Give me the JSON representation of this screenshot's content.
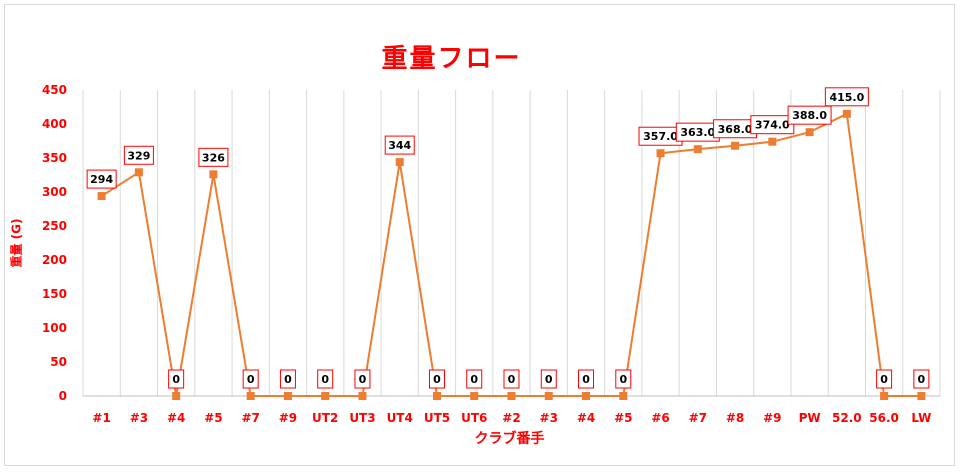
{
  "chart_data": {
    "type": "line",
    "title": "重量フロー",
    "xlabel": "クラブ番手",
    "ylabel": "重量 (G)",
    "ylim": [
      0,
      450
    ],
    "yticks": [
      0,
      50,
      100,
      150,
      200,
      250,
      300,
      350,
      400,
      450
    ],
    "grid": "vertical",
    "categories": [
      "#1",
      "#3",
      "#4",
      "#5",
      "#7",
      "#9",
      "UT2",
      "UT3",
      "UT4",
      "UT5",
      "UT6",
      "#2",
      "#3",
      "#4",
      "#5",
      "#6",
      "#7",
      "#8",
      "#9",
      "PW",
      "52.0",
      "56.0",
      "LW"
    ],
    "series": [
      {
        "values": [
          294,
          329,
          0,
          326,
          0,
          0,
          0,
          0,
          344,
          0,
          0,
          0,
          0,
          0,
          0,
          357.0,
          363.0,
          368.0,
          374.0,
          388.0,
          415.0,
          0,
          0
        ],
        "labels": [
          "294",
          "329",
          "0",
          "326",
          "0",
          "0",
          "0",
          "0",
          "344",
          "0",
          "0",
          "0",
          "0",
          "0",
          "0",
          "357.0",
          "363.0",
          "368.0",
          "374.0",
          "388.0",
          "415.0",
          "0",
          "0"
        ],
        "color": "#ed7d31"
      }
    ],
    "label_border_color": "#ff0000",
    "axis_text_color": "#ff0000"
  }
}
